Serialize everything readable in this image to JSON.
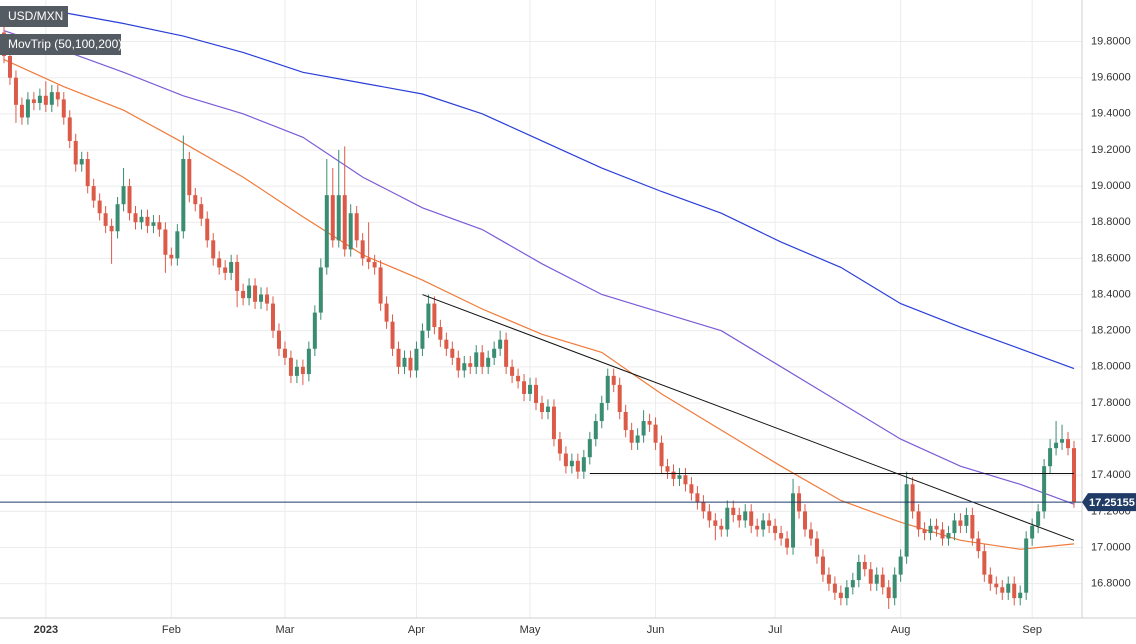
{
  "chart_data": {
    "type": "candlestick",
    "title": "USD/MXN",
    "indicator": "MovTrip (50,100,200)",
    "up_color": "#3a8c72",
    "down_color": "#dc5a48",
    "grid": true,
    "ylim": [
      16.61,
      20.03
    ],
    "yticks": [
      {
        "value": 16.8,
        "label": "16.8000"
      },
      {
        "value": 17.0,
        "label": "17.0000"
      },
      {
        "value": 17.2,
        "label": "17.2000"
      },
      {
        "value": 17.4,
        "label": "17.4000"
      },
      {
        "value": 17.6,
        "label": "17.6000"
      },
      {
        "value": 17.8,
        "label": "17.8000"
      },
      {
        "value": 18.0,
        "label": "18.0000"
      },
      {
        "value": 18.2,
        "label": "18.2000"
      },
      {
        "value": 18.4,
        "label": "18.4000"
      },
      {
        "value": 18.6,
        "label": "18.6000"
      },
      {
        "value": 18.8,
        "label": "18.8000"
      },
      {
        "value": 19.0,
        "label": "19.0000"
      },
      {
        "value": 19.2,
        "label": "19.2000"
      },
      {
        "value": 19.4,
        "label": "19.4000"
      },
      {
        "value": 19.6,
        "label": "19.6000"
      },
      {
        "value": 19.8,
        "label": "19.8000"
      }
    ],
    "categories": [
      null,
      null,
      null,
      null,
      null,
      null,
      null,
      "2023",
      null,
      null,
      null,
      null,
      null,
      null,
      null,
      null,
      null,
      null,
      null,
      null,
      null,
      null,
      null,
      null,
      null,
      null,
      null,
      null,
      "Feb",
      null,
      null,
      null,
      null,
      null,
      null,
      null,
      null,
      null,
      null,
      null,
      null,
      null,
      null,
      null,
      null,
      null,
      null,
      "Mar",
      null,
      null,
      null,
      null,
      null,
      null,
      null,
      null,
      null,
      null,
      null,
      null,
      null,
      null,
      null,
      null,
      null,
      null,
      null,
      null,
      null,
      "Apr",
      null,
      null,
      null,
      null,
      null,
      null,
      null,
      null,
      null,
      null,
      null,
      null,
      null,
      null,
      null,
      null,
      null,
      null,
      "May",
      null,
      null,
      null,
      null,
      null,
      null,
      null,
      null,
      null,
      null,
      null,
      null,
      null,
      null,
      null,
      null,
      null,
      null,
      null,
      null,
      "Jun",
      null,
      null,
      null,
      null,
      null,
      null,
      null,
      null,
      null,
      null,
      null,
      null,
      null,
      null,
      null,
      null,
      null,
      null,
      null,
      "Jul",
      null,
      null,
      null,
      null,
      null,
      null,
      null,
      null,
      null,
      null,
      null,
      null,
      null,
      null,
      null,
      null,
      null,
      null,
      null,
      null,
      "Aug",
      null,
      null,
      null,
      null,
      null,
      null,
      null,
      null,
      null,
      null,
      null,
      null,
      null,
      null,
      null,
      null,
      null,
      null,
      null,
      null,
      null,
      "Sep",
      null,
      null,
      null,
      null,
      null,
      null,
      null
    ],
    "open": [
      19.85,
      19.72,
      19.6,
      19.45,
      19.38,
      19.48,
      19.46,
      19.5,
      19.45,
      19.52,
      19.48,
      19.38,
      19.25,
      19.12,
      19.15,
      19.0,
      18.92,
      18.85,
      18.78,
      18.75,
      18.9,
      19.0,
      18.85,
      18.8,
      18.83,
      18.78,
      18.8,
      18.76,
      18.62,
      18.6,
      18.75,
      19.15,
      18.95,
      18.9,
      18.82,
      18.7,
      18.6,
      18.55,
      18.52,
      18.58,
      18.42,
      18.38,
      18.45,
      18.36,
      18.4,
      18.35,
      18.2,
      18.1,
      18.05,
      17.95,
      18.0,
      17.96,
      18.1,
      18.3,
      18.55,
      18.95,
      18.7,
      18.95,
      18.65,
      18.85,
      18.7,
      18.6,
      18.58,
      18.55,
      18.35,
      18.25,
      18.1,
      18.0,
      18.05,
      17.98,
      18.1,
      18.2,
      18.35,
      18.22,
      18.15,
      18.1,
      18.05,
      17.98,
      18.02,
      18.0,
      18.08,
      18.0,
      18.05,
      18.1,
      18.15,
      18.0,
      17.95,
      17.92,
      17.85,
      17.9,
      17.8,
      17.75,
      17.78,
      17.6,
      17.52,
      17.45,
      17.48,
      17.42,
      17.5,
      17.6,
      17.7,
      17.8,
      17.95,
      17.9,
      17.75,
      17.65,
      17.58,
      17.62,
      17.7,
      17.68,
      17.58,
      17.45,
      17.42,
      17.38,
      17.4,
      17.35,
      17.3,
      17.25,
      17.2,
      17.15,
      17.12,
      17.1,
      17.22,
      17.18,
      17.15,
      17.2,
      17.12,
      17.1,
      17.15,
      17.12,
      17.08,
      17.05,
      17.0,
      17.3,
      17.2,
      17.1,
      17.05,
      16.95,
      16.85,
      16.8,
      16.75,
      16.72,
      16.78,
      16.82,
      16.92,
      16.88,
      16.8,
      16.85,
      16.78,
      16.72,
      16.85,
      16.95,
      17.35,
      17.2,
      17.1,
      17.08,
      17.12,
      17.1,
      17.05,
      17.08,
      17.15,
      17.12,
      17.18,
      17.05,
      16.98,
      16.85,
      16.8,
      16.78,
      16.75,
      16.8,
      16.72,
      16.75,
      17.05,
      17.12,
      17.2,
      17.45,
      17.55,
      17.58,
      17.6,
      17.55
    ],
    "high": [
      19.89,
      19.76,
      19.64,
      19.49,
      19.52,
      19.52,
      19.54,
      19.58,
      19.56,
      19.56,
      19.52,
      19.42,
      19.29,
      19.19,
      19.19,
      19.04,
      18.96,
      18.89,
      18.82,
      18.94,
      19.1,
      19.04,
      18.89,
      18.87,
      18.87,
      18.84,
      18.84,
      18.8,
      18.66,
      18.79,
      19.28,
      19.19,
      18.99,
      18.94,
      18.86,
      18.74,
      18.64,
      18.59,
      18.62,
      18.62,
      18.46,
      18.49,
      18.49,
      18.44,
      18.44,
      18.39,
      18.24,
      18.14,
      18.09,
      18.04,
      18.04,
      18.14,
      18.34,
      18.6,
      19.15,
      19.1,
      19.2,
      19.22,
      18.9,
      18.89,
      18.74,
      18.8,
      18.62,
      18.59,
      18.39,
      18.29,
      18.14,
      18.09,
      18.09,
      18.14,
      18.24,
      18.4,
      18.39,
      18.26,
      18.19,
      18.14,
      18.09,
      18.06,
      18.06,
      18.12,
      18.12,
      18.09,
      18.14,
      18.2,
      18.19,
      18.04,
      17.99,
      17.96,
      17.94,
      17.94,
      17.84,
      17.82,
      17.82,
      17.64,
      17.56,
      17.52,
      17.52,
      17.54,
      17.64,
      17.74,
      17.84,
      17.99,
      17.99,
      17.94,
      17.79,
      17.69,
      17.66,
      17.76,
      17.74,
      17.72,
      17.62,
      17.49,
      17.46,
      17.44,
      17.44,
      17.39,
      17.34,
      17.29,
      17.24,
      17.19,
      17.16,
      17.26,
      17.26,
      17.22,
      17.24,
      17.24,
      17.16,
      17.19,
      17.19,
      17.16,
      17.12,
      17.09,
      17.38,
      17.34,
      17.24,
      17.14,
      17.09,
      16.99,
      16.89,
      16.84,
      16.79,
      16.82,
      16.86,
      16.96,
      16.96,
      16.92,
      16.89,
      16.89,
      16.82,
      16.89,
      16.99,
      17.42,
      17.39,
      17.24,
      17.14,
      17.16,
      17.16,
      17.14,
      17.12,
      17.19,
      17.19,
      17.22,
      17.22,
      17.09,
      17.02,
      16.89,
      16.84,
      16.82,
      16.84,
      16.84,
      16.79,
      17.09,
      17.16,
      17.24,
      17.49,
      17.6,
      17.7,
      17.68,
      17.64,
      17.59
    ],
    "low": [
      19.68,
      19.56,
      19.35,
      19.34,
      19.34,
      19.42,
      19.42,
      19.41,
      19.41,
      19.44,
      19.34,
      19.21,
      19.08,
      19.08,
      18.96,
      18.88,
      18.81,
      18.74,
      18.57,
      18.71,
      18.86,
      18.81,
      18.76,
      18.76,
      18.74,
      18.74,
      18.72,
      18.52,
      18.56,
      18.56,
      18.71,
      18.91,
      18.86,
      18.78,
      18.66,
      18.56,
      18.51,
      18.48,
      18.48,
      18.33,
      18.34,
      18.34,
      18.32,
      18.32,
      18.31,
      18.16,
      18.06,
      18.01,
      17.91,
      17.91,
      17.9,
      17.92,
      18.06,
      18.26,
      18.51,
      18.66,
      18.66,
      18.61,
      18.61,
      18.66,
      18.56,
      18.54,
      18.51,
      18.31,
      18.21,
      18.06,
      17.96,
      17.96,
      17.94,
      17.94,
      18.06,
      18.16,
      18.18,
      18.11,
      18.06,
      18.01,
      17.94,
      17.94,
      17.96,
      17.96,
      17.96,
      17.96,
      18.01,
      18.06,
      17.96,
      17.91,
      17.88,
      17.81,
      17.81,
      17.76,
      17.71,
      17.71,
      17.56,
      17.48,
      17.41,
      17.41,
      17.38,
      17.38,
      17.46,
      17.56,
      17.66,
      17.76,
      17.86,
      17.71,
      17.61,
      17.54,
      17.54,
      17.58,
      17.64,
      17.54,
      17.41,
      17.38,
      17.34,
      17.34,
      17.31,
      17.26,
      17.21,
      17.16,
      17.11,
      17.04,
      17.06,
      17.06,
      17.14,
      17.11,
      17.11,
      17.08,
      17.06,
      17.06,
      17.08,
      17.04,
      17.01,
      16.96,
      16.96,
      17.16,
      17.06,
      17.01,
      16.91,
      16.81,
      16.76,
      16.71,
      16.68,
      16.68,
      16.74,
      16.78,
      16.84,
      16.76,
      16.76,
      16.74,
      16.66,
      16.68,
      16.81,
      16.91,
      17.16,
      17.06,
      17.04,
      17.04,
      17.06,
      17.01,
      17.01,
      17.04,
      17.08,
      17.08,
      17.01,
      16.94,
      16.81,
      16.76,
      16.74,
      16.71,
      16.71,
      16.68,
      16.68,
      16.71,
      17.01,
      17.08,
      17.16,
      17.41,
      17.51,
      17.54,
      17.51,
      17.22
    ],
    "close": [
      19.72,
      19.6,
      19.45,
      19.38,
      19.48,
      19.46,
      19.5,
      19.45,
      19.52,
      19.48,
      19.38,
      19.25,
      19.12,
      19.15,
      19.0,
      18.92,
      18.85,
      18.78,
      18.75,
      18.9,
      19.0,
      18.85,
      18.8,
      18.83,
      18.78,
      18.8,
      18.76,
      18.62,
      18.6,
      18.75,
      19.15,
      18.95,
      18.9,
      18.82,
      18.7,
      18.6,
      18.55,
      18.52,
      18.58,
      18.42,
      18.38,
      18.45,
      18.36,
      18.4,
      18.35,
      18.2,
      18.1,
      18.05,
      17.95,
      18.0,
      17.96,
      18.1,
      18.3,
      18.55,
      18.95,
      18.7,
      18.95,
      18.65,
      18.85,
      18.7,
      18.6,
      18.58,
      18.55,
      18.35,
      18.25,
      18.1,
      18.0,
      18.05,
      17.98,
      18.1,
      18.2,
      18.35,
      18.22,
      18.15,
      18.1,
      18.05,
      17.98,
      18.02,
      18.0,
      18.08,
      18.0,
      18.05,
      18.1,
      18.15,
      18.0,
      17.95,
      17.92,
      17.85,
      17.9,
      17.8,
      17.75,
      17.78,
      17.6,
      17.52,
      17.45,
      17.48,
      17.42,
      17.5,
      17.6,
      17.7,
      17.8,
      17.95,
      17.9,
      17.75,
      17.65,
      17.58,
      17.62,
      17.7,
      17.68,
      17.58,
      17.45,
      17.42,
      17.38,
      17.4,
      17.35,
      17.3,
      17.25,
      17.2,
      17.15,
      17.12,
      17.1,
      17.22,
      17.18,
      17.15,
      17.2,
      17.12,
      17.1,
      17.15,
      17.12,
      17.08,
      17.05,
      17.0,
      17.3,
      17.2,
      17.1,
      17.05,
      16.95,
      16.85,
      16.8,
      16.75,
      16.72,
      16.78,
      16.82,
      16.92,
      16.88,
      16.8,
      16.85,
      16.78,
      16.72,
      16.85,
      16.95,
      17.35,
      17.2,
      17.1,
      17.08,
      17.12,
      17.1,
      17.05,
      17.08,
      17.15,
      17.12,
      17.18,
      17.05,
      16.98,
      16.85,
      16.8,
      16.78,
      16.75,
      16.8,
      16.72,
      16.75,
      17.05,
      17.12,
      17.2,
      17.45,
      17.55,
      17.58,
      17.6,
      17.55,
      17.25
    ],
    "moving_averages": [
      {
        "color": "#f07a3a",
        "x": [
          0,
          10,
          20,
          30,
          40,
          50,
          60,
          70,
          80,
          90,
          100,
          110,
          120,
          130,
          140,
          150,
          160,
          170,
          179
        ],
        "values": [
          19.7,
          19.55,
          19.42,
          19.24,
          19.05,
          18.83,
          18.62,
          18.48,
          18.32,
          18.18,
          18.08,
          17.85,
          17.65,
          17.45,
          17.26,
          17.14,
          17.04,
          16.99,
          17.02
        ]
      },
      {
        "color": "#7b5cd6",
        "x": [
          0,
          10,
          20,
          30,
          40,
          50,
          60,
          70,
          80,
          90,
          100,
          110,
          120,
          130,
          140,
          150,
          160,
          170,
          179
        ],
        "values": [
          19.86,
          19.75,
          19.63,
          19.5,
          19.4,
          19.27,
          19.05,
          18.88,
          18.76,
          18.57,
          18.4,
          18.3,
          18.2,
          18.0,
          17.8,
          17.6,
          17.45,
          17.35,
          17.24
        ]
      },
      {
        "color": "#2a3fd8",
        "x": [
          0,
          10,
          20,
          30,
          40,
          50,
          60,
          70,
          80,
          90,
          100,
          110,
          120,
          130,
          140,
          150,
          160,
          170,
          179
        ],
        "values": [
          19.98,
          19.96,
          19.9,
          19.83,
          19.74,
          19.63,
          19.57,
          19.51,
          19.4,
          19.25,
          19.1,
          18.97,
          18.85,
          18.69,
          18.55,
          18.35,
          18.22,
          18.1,
          17.99
        ]
      }
    ],
    "trendlines": [
      {
        "x": [
          70,
          179
        ],
        "values": [
          18.4,
          17.04
        ]
      },
      {
        "x": [
          98,
          179
        ],
        "values": [
          17.41,
          17.41
        ]
      }
    ],
    "last_price": 17.25155
  }
}
